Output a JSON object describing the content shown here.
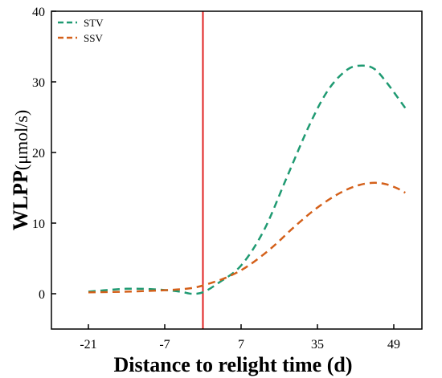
{
  "chart_data": {
    "type": "line",
    "title": "",
    "xlabel": "Distance to relight time (d)",
    "ylabel": "WLPP",
    "ylabel_unit": "(μmol/s)",
    "x_ticks": [
      "-21",
      "-7",
      "7",
      "35",
      "49"
    ],
    "y_ticks": [
      "0",
      "10",
      "20",
      "30",
      "40"
    ],
    "ylim": [
      -5,
      40
    ],
    "grid": false,
    "legend_position": "top-left",
    "reference_line": {
      "x_position": "between -7 and 7",
      "color": "#e02020"
    },
    "series": [
      {
        "name": "STV",
        "color": "#1f9a72",
        "style": "dashed",
        "points": [
          [
            0.0,
            0.3
          ],
          [
            0.5,
            0.7
          ],
          [
            0.9,
            0.6
          ],
          [
            1.2,
            0.3
          ],
          [
            1.35,
            0.0
          ],
          [
            1.5,
            0.2
          ],
          [
            1.7,
            1.5
          ],
          [
            2.0,
            4.0
          ],
          [
            2.3,
            9.0
          ],
          [
            2.6,
            16.5
          ],
          [
            2.9,
            24.0
          ],
          [
            3.15,
            29.0
          ],
          [
            3.4,
            31.8
          ],
          [
            3.6,
            32.3
          ],
          [
            3.75,
            31.8
          ],
          [
            3.9,
            30.0
          ],
          [
            4.05,
            27.8
          ],
          [
            4.15,
            26.3
          ]
        ]
      },
      {
        "name": "SSV",
        "color": "#d4601a",
        "style": "dashed",
        "points": [
          [
            0.0,
            0.2
          ],
          [
            0.5,
            0.3
          ],
          [
            1.0,
            0.5
          ],
          [
            1.35,
            0.8
          ],
          [
            1.6,
            1.5
          ],
          [
            1.85,
            2.5
          ],
          [
            2.1,
            4.0
          ],
          [
            2.4,
            6.5
          ],
          [
            2.7,
            9.5
          ],
          [
            3.0,
            12.2
          ],
          [
            3.3,
            14.3
          ],
          [
            3.55,
            15.4
          ],
          [
            3.75,
            15.7
          ],
          [
            3.9,
            15.5
          ],
          [
            4.05,
            14.9
          ],
          [
            4.15,
            14.3
          ]
        ]
      }
    ]
  }
}
